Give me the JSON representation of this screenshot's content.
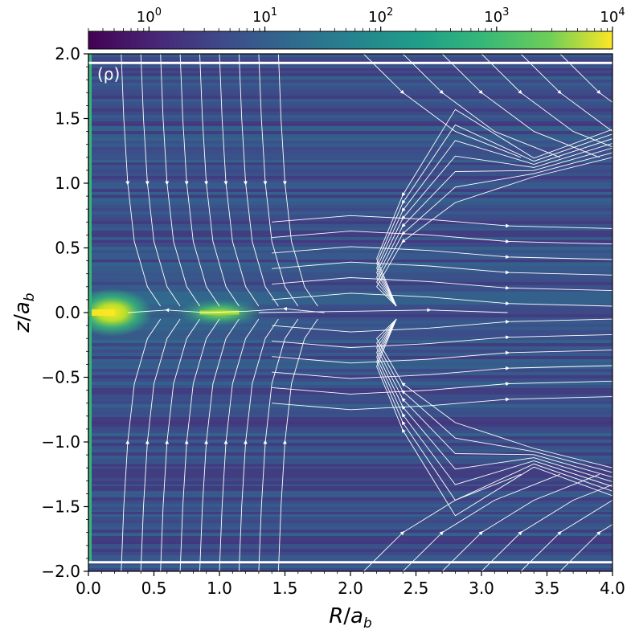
{
  "chart_data": {
    "type": "heatmap",
    "panel_label": "(ρ)",
    "xlabel_main": "R",
    "xlabel_sub": "b",
    "ylabel_main": "z",
    "ylabel_sub": "b",
    "label_letter": "a",
    "xlim": [
      0.0,
      4.0
    ],
    "ylim": [
      -2.0,
      2.0
    ],
    "xticks": [
      "0.0",
      "0.5",
      "1.0",
      "1.5",
      "2.0",
      "2.5",
      "3.0",
      "3.5",
      "4.0"
    ],
    "yticks": [
      "2.0",
      "1.5",
      "1.0",
      "0.5",
      "0.0",
      "−0.5",
      "−1.0",
      "−1.5",
      "−2.0"
    ],
    "colorbar": {
      "scale": "log",
      "colormap": "viridis",
      "range": [
        0.3,
        10000
      ],
      "tick_base": "10",
      "tick_exponents": [
        "0",
        "1",
        "2",
        "3",
        "4"
      ]
    },
    "density_features": [
      {
        "feature": "central-blob",
        "R": 0.18,
        "z": 0.0,
        "level": 3000
      },
      {
        "feature": "ring-blob",
        "R": 1.0,
        "z": 0.0,
        "level": 1000
      },
      {
        "feature": "background",
        "level": 15
      }
    ],
    "colors": {
      "streamline": "#ffffff",
      "axis_strip": "#35b779"
    }
  }
}
